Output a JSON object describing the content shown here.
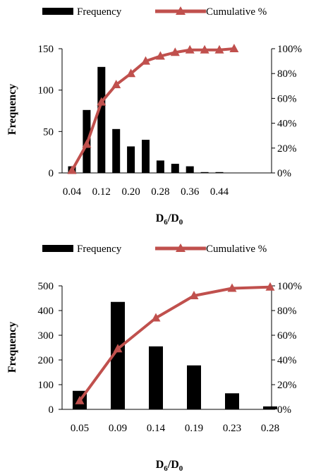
{
  "chart_data": [
    {
      "type": "bar",
      "legend": {
        "placement": "top",
        "bar_label": "Frequency",
        "line_label": "Cumulative %"
      },
      "xlabel": "D6/D0",
      "xlabel_main": "D",
      "xlabel_sub1": "6",
      "xlabel_sep": "/D",
      "xlabel_sub2": "0",
      "ylabel": "Frequency",
      "ylim": [
        0,
        150
      ],
      "y_ticks": [
        "0",
        "50",
        "100",
        "150"
      ],
      "y2lim": [
        0,
        100
      ],
      "y2_ticks": [
        "0%",
        "20%",
        "40%",
        "60%",
        "80%",
        "100%"
      ],
      "x_tick_labels": [
        "0.04",
        "0.12",
        "0.20",
        "0.28",
        "0.36",
        "0.44"
      ],
      "categories": [
        0.04,
        0.08,
        0.12,
        0.16,
        0.2,
        0.24,
        0.28,
        0.32,
        0.36,
        0.4,
        0.44,
        0.48
      ],
      "series": [
        {
          "name": "Frequency",
          "type": "bar",
          "values": [
            8,
            76,
            128,
            53,
            32,
            40,
            15,
            11,
            8,
            1,
            1,
            0
          ]
        },
        {
          "name": "Cumulative %",
          "type": "line",
          "axis": "right",
          "values": [
            2,
            23,
            57,
            71,
            80,
            90,
            94,
            97,
            99,
            99,
            99,
            100
          ]
        }
      ],
      "colors": {
        "bar": "#000000",
        "line": "#c0504d"
      },
      "grid": false
    },
    {
      "type": "bar",
      "legend": {
        "placement": "top",
        "bar_label": "Frequency",
        "line_label": "Cumulative %"
      },
      "xlabel": "D6/D0",
      "xlabel_main": "D",
      "xlabel_sub1": "6",
      "xlabel_sep": "/D",
      "xlabel_sub2": "0",
      "ylabel": "Frequency",
      "ylim": [
        0,
        500
      ],
      "y_ticks": [
        "0",
        "100",
        "200",
        "300",
        "400",
        "500"
      ],
      "y2lim": [
        0,
        100
      ],
      "y2_ticks": [
        "0%",
        "20%",
        "40%",
        "60%",
        "80%",
        "100%"
      ],
      "x_tick_labels": [
        "0.05",
        "0.09",
        "0.14",
        "0.19",
        "0.23",
        "0.28"
      ],
      "categories": [
        "0.05",
        "0.09",
        "0.14",
        "0.19",
        "0.23",
        "0.28"
      ],
      "series": [
        {
          "name": "Frequency",
          "type": "bar",
          "values": [
            75,
            435,
            255,
            178,
            65,
            12
          ]
        },
        {
          "name": "Cumulative %",
          "type": "line",
          "axis": "right",
          "values": [
            7,
            49,
            74,
            92,
            98,
            99
          ]
        }
      ],
      "colors": {
        "bar": "#000000",
        "line": "#c0504d"
      },
      "grid": false
    }
  ]
}
